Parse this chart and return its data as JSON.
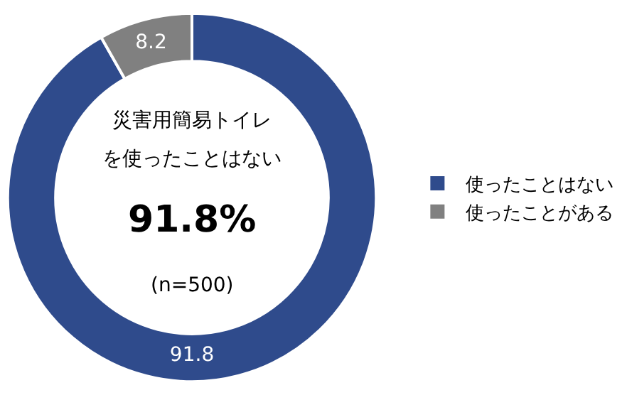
{
  "chart_data": {
    "type": "donut",
    "categories": [
      "使ったことはない",
      "使ったことがある"
    ],
    "values": [
      91.8,
      8.2
    ],
    "colors": [
      "#2f4b8c",
      "#808080"
    ],
    "data_labels": true,
    "legend": "right",
    "annotations": [
      "災害用簡易トイレ",
      "を使ったことはない",
      "91.8%",
      "(n=500)"
    ]
  }
}
